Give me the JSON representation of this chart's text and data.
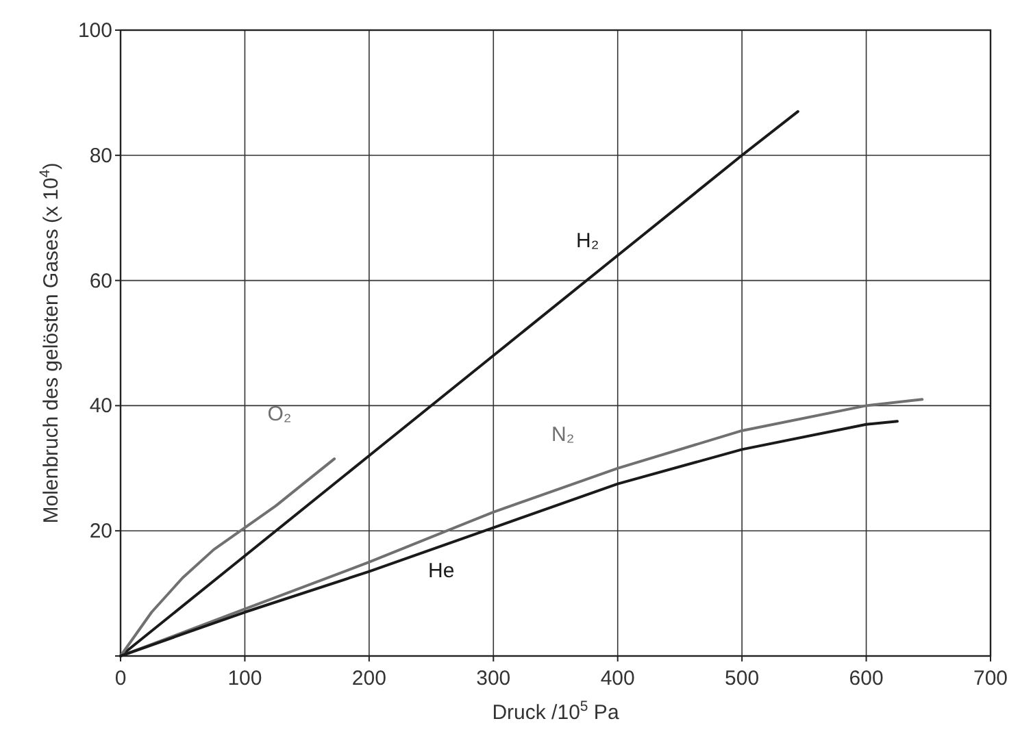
{
  "chart_data": {
    "type": "line",
    "xlabel": "Druck /10$^{5}$ Pa",
    "ylabel": "Molenbruch des gelösten Gases (x 10$^{4}$)",
    "xlim": [
      0,
      700
    ],
    "xticks": [
      0,
      100,
      200,
      300,
      400,
      500,
      600,
      700
    ],
    "ylim": [
      0,
      100
    ],
    "yticks": [
      {
        "value": 0,
        "label": null
      },
      20,
      40,
      60,
      80,
      100
    ],
    "grid": true,
    "marker": "none",
    "line_style": "solid",
    "series": [
      {
        "name": "H₂",
        "color": "#1a1a1a",
        "x": [
          0,
          100,
          200,
          300,
          400,
          500,
          545
        ],
        "values": [
          0,
          16,
          32,
          48,
          64,
          80,
          87
        ]
      },
      {
        "name": "O₂",
        "color": "#707070",
        "x": [
          0,
          25,
          50,
          75,
          100,
          125,
          150,
          172
        ],
        "values": [
          0,
          7,
          12.5,
          17,
          20.5,
          24,
          28,
          31.5
        ]
      },
      {
        "name": "N₂",
        "color": "#707070",
        "x": [
          0,
          100,
          200,
          300,
          400,
          500,
          600,
          645
        ],
        "values": [
          0,
          7.5,
          15,
          23,
          30,
          36,
          40,
          41
        ]
      },
      {
        "name": "He",
        "color": "#1a1a1a",
        "x": [
          0,
          100,
          200,
          300,
          400,
          500,
          600,
          625
        ],
        "values": [
          0,
          7,
          13.5,
          20.5,
          27.5,
          33,
          37,
          37.5
        ]
      }
    ]
  }
}
